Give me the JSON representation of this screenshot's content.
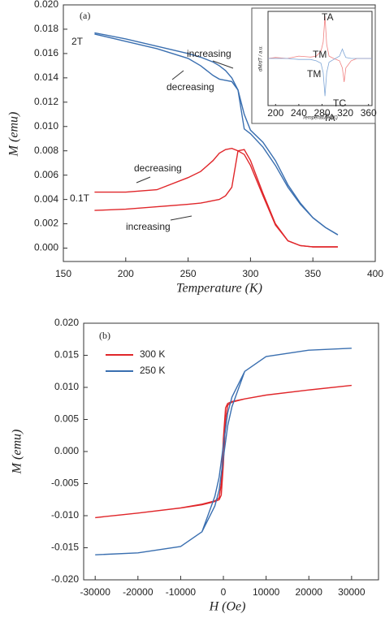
{
  "chart_data": [
    {
      "type": "line",
      "panel_label": "(a)",
      "xlabel": "Temperature (K)",
      "ylabel": "M (emu)",
      "x": [
        175,
        200,
        225,
        250,
        260,
        270,
        275,
        280,
        285,
        290,
        295,
        300,
        310,
        320,
        330,
        340,
        350,
        360,
        370
      ],
      "series": [
        {
          "color": "#3a6fb0",
          "values": [
            0.0177,
            0.0172,
            0.0166,
            0.016,
            0.0157,
            0.0153,
            0.015,
            0.0146,
            0.014,
            0.013,
            0.011,
            0.0097,
            0.0087,
            0.0072,
            0.0052,
            0.0037,
            0.0025,
            0.0017,
            0.0011
          ]
        },
        {
          "color": "#3a6fb0",
          "values": [
            0.0176,
            0.017,
            0.0164,
            0.0156,
            0.015,
            0.0142,
            0.0139,
            0.0138,
            0.0137,
            0.013,
            0.0098,
            0.0094,
            0.0083,
            0.0068,
            0.005,
            0.0036,
            0.0025,
            0.0017,
            0.0011
          ]
        },
        {
          "color": "#e0262a",
          "values": [
            0.0031,
            0.0032,
            0.0034,
            0.0036,
            0.0037,
            0.0039,
            0.004,
            0.0043,
            0.005,
            0.008,
            0.0081,
            0.0072,
            0.0045,
            0.002,
            0.0006,
            0.0002,
            0.0001,
            0.0001,
            0.0001
          ]
        },
        {
          "color": "#e0262a",
          "values": [
            0.0046,
            0.0046,
            0.0048,
            0.0058,
            0.0063,
            0.0072,
            0.0078,
            0.0081,
            0.0082,
            0.008,
            0.0077,
            0.0068,
            0.0043,
            0.0019,
            0.0006,
            0.0002,
            0.0001,
            0.0001,
            0.0001
          ]
        }
      ],
      "xlim": [
        150,
        400
      ],
      "ylim": [
        -0.0011,
        0.02
      ],
      "xticks": [
        150,
        200,
        250,
        300,
        350,
        400
      ],
      "yticks": [
        {
          "value": 0,
          "label": "0.000"
        },
        {
          "value": 0.002,
          "label": "0.002"
        },
        {
          "value": 0.004,
          "label": "0.004"
        },
        {
          "value": 0.006,
          "label": "0.006"
        },
        {
          "value": 0.008,
          "label": "0.008"
        },
        {
          "value": 0.01,
          "label": "0.010"
        },
        {
          "value": 0.012,
          "label": "0.012"
        },
        {
          "value": 0.014,
          "label": "0.014"
        },
        {
          "value": 0.016,
          "label": "0.016"
        },
        {
          "value": 0.018,
          "label": "0.018"
        },
        {
          "value": 0.02,
          "label": "0.020"
        }
      ],
      "annotations": [
        "2T",
        "increasing",
        "decreasing",
        "decreasing",
        "0.1T",
        "increasing"
      ]
    },
    {
      "type": "line",
      "xlabel": "Temperature (K)",
      "ylabel": "dM/dT / a.u.",
      "x": [
        187,
        200,
        220,
        240,
        260,
        270,
        278,
        282,
        285,
        288,
        292,
        300,
        310,
        315,
        318,
        321,
        330,
        340,
        360,
        366
      ],
      "series": [
        {
          "color": "#f08080",
          "values": [
            0,
            0.02,
            0,
            0.05,
            0.03,
            0.05,
            0.15,
            0.35,
            0.9,
            0.3,
            0.05,
            0,
            -0.05,
            -0.2,
            -0.5,
            -0.2,
            -0.05,
            0,
            0,
            0
          ]
        },
        {
          "color": "#7fa6d6",
          "values": [
            0,
            0,
            0,
            -0.02,
            -0.02,
            -0.05,
            -0.1,
            -0.3,
            -0.8,
            -0.3,
            -0.08,
            -0.02,
            0.05,
            0.2,
            0.1,
            0.02,
            0,
            0,
            0,
            0
          ]
        }
      ],
      "xlim": [
        187,
        366
      ],
      "ylim": [
        -1,
        1
      ],
      "xticks": [
        200,
        240,
        280,
        320,
        360
      ],
      "annotations": [
        "TA",
        "TM",
        "TM",
        "TC",
        "TA"
      ]
    },
    {
      "type": "line",
      "panel_label": "(b)",
      "xlabel": "H (Oe)",
      "ylabel": "M (emu)",
      "legend": "upper left",
      "series": [
        {
          "name": "300 K",
          "color": "#e0262a",
          "x": [
            -30000,
            -20000,
            -10000,
            -5000,
            -2000,
            -1000,
            -500,
            0,
            500,
            1000,
            2000,
            5000,
            10000,
            20000,
            30000,
            20000,
            10000,
            5000,
            2000,
            1000,
            500,
            0,
            -500,
            -1000,
            -2000,
            -5000,
            -10000,
            -20000,
            -30000
          ],
          "values": [
            -0.0103,
            -0.0096,
            -0.0088,
            -0.0083,
            -0.0078,
            -0.0075,
            -0.0068,
            -0.002,
            0.005,
            0.0072,
            0.0077,
            0.0082,
            0.0088,
            0.0096,
            0.0103,
            0.0096,
            0.0088,
            0.0082,
            0.0078,
            0.0075,
            0.0068,
            0.002,
            -0.005,
            -0.0072,
            -0.0077,
            -0.0082,
            -0.0088,
            -0.0096,
            -0.0103
          ]
        },
        {
          "name": "250 K",
          "color": "#3a6fb0",
          "x": [
            -30000,
            -20000,
            -10000,
            -5000,
            -2000,
            -1000,
            0,
            1000,
            2000,
            5000,
            10000,
            20000,
            30000,
            20000,
            10000,
            5000,
            2000,
            1000,
            0,
            -1000,
            -2000,
            -5000,
            -10000,
            -20000,
            -30000
          ],
          "values": [
            -0.0161,
            -0.0158,
            -0.0148,
            -0.0125,
            -0.0085,
            -0.006,
            -0.001,
            0.004,
            0.007,
            0.0125,
            0.0148,
            0.0158,
            0.0161,
            0.0158,
            0.0148,
            0.0125,
            0.0085,
            0.006,
            0.001,
            -0.004,
            -0.007,
            -0.0125,
            -0.0148,
            -0.0158,
            -0.0161
          ]
        }
      ],
      "xlim": [
        -32700,
        36300
      ],
      "ylim": [
        -0.02,
        0.02
      ],
      "xticks": [
        -30000,
        -20000,
        -10000,
        0,
        10000,
        20000,
        30000
      ],
      "yticks": [
        {
          "value": -0.02,
          "label": "-0.020"
        },
        {
          "value": -0.015,
          "label": "-0.015"
        },
        {
          "value": -0.01,
          "label": "-0.010"
        },
        {
          "value": -0.005,
          "label": "-0.005"
        },
        {
          "value": 0,
          "label": "0.000"
        },
        {
          "value": 0.005,
          "label": "0.005"
        },
        {
          "value": 0.01,
          "label": "0.010"
        },
        {
          "value": 0.015,
          "label": "0.015"
        },
        {
          "value": 0.02,
          "label": "0.020"
        }
      ]
    }
  ]
}
